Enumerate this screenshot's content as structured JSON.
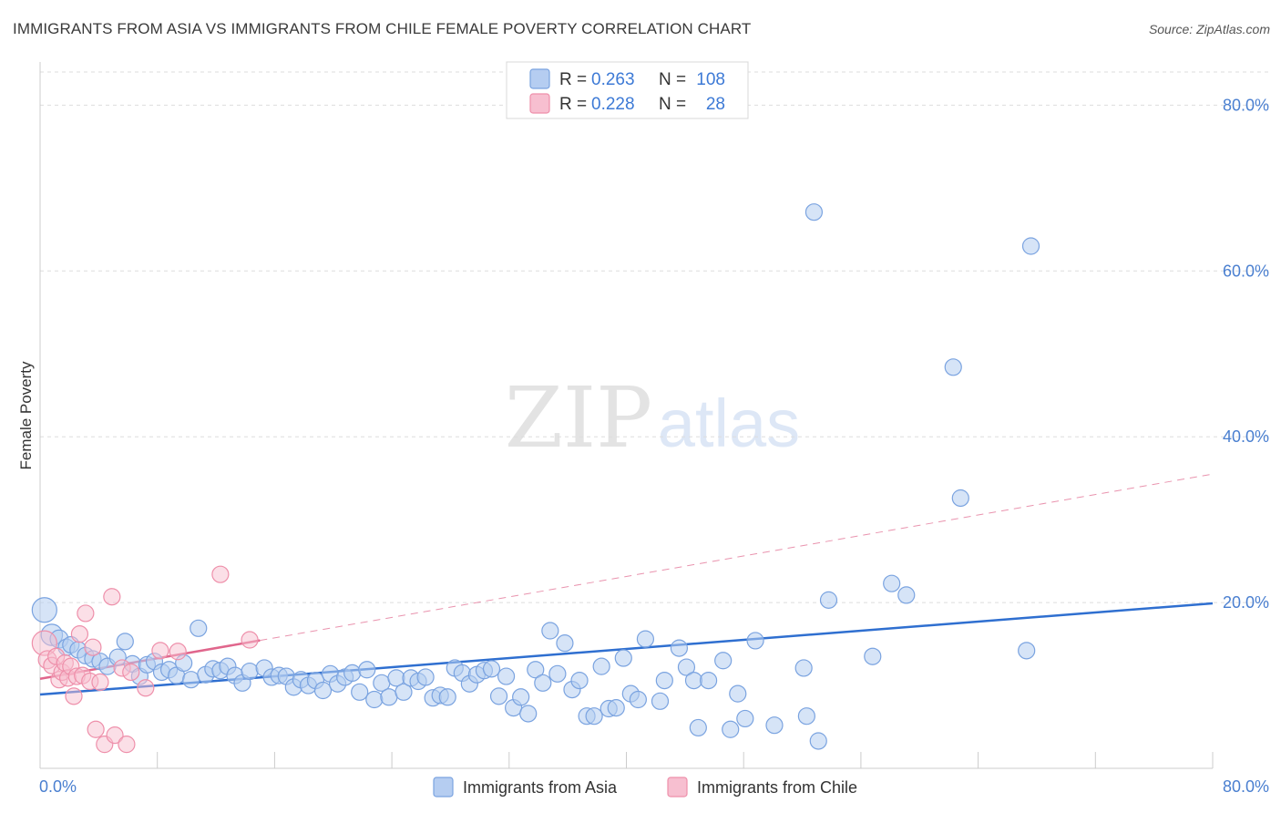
{
  "title": "IMMIGRANTS FROM ASIA VS IMMIGRANTS FROM CHILE FEMALE POVERTY CORRELATION CHART",
  "source": "Source: ZipAtlas.com",
  "watermark": {
    "zip": "ZIP",
    "atlas": "atlas"
  },
  "colors": {
    "asia_fill": "#b5cdf1",
    "asia_stroke": "#7aa3e0",
    "asia_line": "#2f6fd0",
    "chile_fill": "#f7bfd0",
    "chile_stroke": "#ee8faa",
    "chile_line": "#e0668c",
    "grid": "#dddddd",
    "axis_label": "#4a7fd0"
  },
  "legend": {
    "rows": [
      {
        "r_label": "R = ",
        "r_value": "0.263",
        "n_label": "N = ",
        "n_value": "108"
      },
      {
        "r_label": "R = ",
        "r_value": "0.228",
        "n_label": "N = ",
        "n_value": "28"
      }
    ]
  },
  "chart_data": {
    "type": "scatter",
    "title": "IMMIGRANTS FROM ASIA VS IMMIGRANTS FROM CHILE FEMALE POVERTY CORRELATION CHART",
    "xlabel": "",
    "ylabel": "Female Poverty",
    "xlim": [
      0,
      80
    ],
    "ylim": [
      0,
      84
    ],
    "x_tick_labels": {
      "left": "0.0%",
      "right": "80.0%"
    },
    "y_ticks": [
      20,
      40,
      60,
      80
    ],
    "y_tick_labels": [
      "20.0%",
      "40.0%",
      "60.0%",
      "80.0%"
    ],
    "grid": true,
    "series": [
      {
        "name": "Immigrants from Asia",
        "R": 0.263,
        "N": 108,
        "trend": {
          "x0": 0,
          "y0": 8.9,
          "x1": 80,
          "y1": 19.9,
          "style": "solid"
        },
        "points": [
          [
            0.3,
            19.1,
            1.5
          ],
          [
            0.8,
            16.1,
            1.3
          ],
          [
            1.3,
            15.6,
            1.1
          ],
          [
            1.8,
            14.6,
            1.0
          ],
          [
            2.1,
            14.9,
            1.0
          ],
          [
            2.6,
            14.3,
            1.0
          ],
          [
            3.1,
            13.6,
            1.0
          ],
          [
            3.6,
            13.2,
            1.0
          ],
          [
            4.1,
            12.9,
            1.0
          ],
          [
            4.6,
            12.3,
            1.0
          ],
          [
            5.3,
            13.4,
            1.0
          ],
          [
            5.8,
            15.3,
            1.0
          ],
          [
            6.3,
            12.6,
            1.0
          ],
          [
            6.8,
            11.1,
            1.0
          ],
          [
            7.3,
            12.5,
            1.0
          ],
          [
            7.8,
            12.9,
            1.0
          ],
          [
            8.3,
            11.6,
            1.0
          ],
          [
            8.8,
            11.9,
            1.0
          ],
          [
            9.3,
            11.2,
            1.0
          ],
          [
            9.8,
            12.7,
            1.0
          ],
          [
            10.3,
            10.7,
            1.0
          ],
          [
            10.8,
            16.9,
            1.0
          ],
          [
            11.3,
            11.3,
            1.0
          ],
          [
            11.8,
            12.0,
            1.0
          ],
          [
            12.3,
            11.8,
            1.0
          ],
          [
            12.8,
            12.3,
            1.0
          ],
          [
            13.3,
            11.2,
            1.0
          ],
          [
            13.8,
            10.3,
            1.0
          ],
          [
            14.3,
            11.7,
            1.0
          ],
          [
            15.3,
            12.1,
            1.0
          ],
          [
            15.8,
            11.0,
            1.0
          ],
          [
            16.3,
            11.2,
            1.0
          ],
          [
            16.8,
            11.1,
            1.0
          ],
          [
            17.3,
            9.8,
            1.0
          ],
          [
            17.8,
            10.7,
            1.0
          ],
          [
            18.3,
            10.0,
            1.0
          ],
          [
            18.8,
            10.6,
            1.0
          ],
          [
            19.3,
            9.4,
            1.0
          ],
          [
            19.8,
            11.4,
            1.0
          ],
          [
            20.3,
            10.2,
            1.0
          ],
          [
            20.8,
            11.0,
            1.0
          ],
          [
            21.3,
            11.5,
            1.0
          ],
          [
            21.8,
            9.2,
            1.0
          ],
          [
            22.3,
            11.9,
            1.0
          ],
          [
            22.8,
            8.3,
            1.0
          ],
          [
            23.3,
            10.3,
            1.0
          ],
          [
            23.8,
            8.6,
            1.0
          ],
          [
            24.3,
            10.9,
            1.0
          ],
          [
            24.8,
            9.2,
            1.0
          ],
          [
            25.3,
            10.9,
            1.0
          ],
          [
            25.8,
            10.5,
            1.0
          ],
          [
            26.3,
            11.0,
            1.0
          ],
          [
            26.8,
            8.5,
            1.0
          ],
          [
            27.3,
            8.8,
            1.0
          ],
          [
            27.8,
            8.6,
            1.0
          ],
          [
            28.3,
            12.1,
            1.0
          ],
          [
            28.8,
            11.5,
            1.0
          ],
          [
            29.3,
            10.2,
            1.0
          ],
          [
            29.8,
            11.3,
            1.0
          ],
          [
            30.3,
            11.8,
            1.0
          ],
          [
            30.8,
            12.0,
            1.0
          ],
          [
            31.3,
            8.7,
            1.0
          ],
          [
            31.8,
            11.1,
            1.0
          ],
          [
            32.3,
            7.3,
            1.0
          ],
          [
            32.8,
            8.6,
            1.0
          ],
          [
            33.3,
            6.6,
            1.0
          ],
          [
            33.8,
            11.9,
            1.0
          ],
          [
            34.3,
            10.3,
            1.0
          ],
          [
            34.8,
            16.6,
            1.0
          ],
          [
            35.3,
            11.4,
            1.0
          ],
          [
            35.8,
            15.1,
            1.0
          ],
          [
            36.3,
            9.5,
            1.0
          ],
          [
            36.8,
            10.6,
            1.0
          ],
          [
            37.3,
            6.3,
            1.0
          ],
          [
            37.8,
            6.3,
            1.0
          ],
          [
            38.3,
            12.3,
            1.0
          ],
          [
            38.8,
            7.2,
            1.0
          ],
          [
            39.3,
            7.3,
            1.0
          ],
          [
            39.8,
            13.3,
            1.0
          ],
          [
            40.3,
            9.0,
            1.0
          ],
          [
            40.8,
            8.3,
            1.0
          ],
          [
            41.3,
            15.6,
            1.0
          ],
          [
            42.3,
            8.1,
            1.0
          ],
          [
            42.6,
            10.6,
            1.0
          ],
          [
            43.6,
            14.5,
            1.0
          ],
          [
            44.1,
            12.2,
            1.0
          ],
          [
            44.6,
            10.6,
            1.0
          ],
          [
            44.9,
            4.9,
            1.0
          ],
          [
            45.6,
            10.6,
            1.0
          ],
          [
            46.6,
            13.0,
            1.0
          ],
          [
            47.1,
            4.7,
            1.0
          ],
          [
            47.6,
            9.0,
            1.0
          ],
          [
            48.1,
            6.0,
            1.0
          ],
          [
            48.8,
            15.4,
            1.0
          ],
          [
            50.1,
            5.2,
            1.0
          ],
          [
            52.1,
            12.1,
            1.0
          ],
          [
            52.3,
            6.3,
            1.0
          ],
          [
            52.8,
            67.1,
            1.0
          ],
          [
            53.1,
            3.3,
            1.0
          ],
          [
            53.8,
            20.3,
            1.0
          ],
          [
            56.8,
            13.5,
            1.0
          ],
          [
            58.1,
            22.3,
            1.0
          ],
          [
            59.1,
            20.9,
            1.0
          ],
          [
            62.3,
            48.4,
            1.0
          ],
          [
            62.8,
            32.6,
            1.0
          ],
          [
            67.3,
            14.2,
            1.0
          ],
          [
            67.6,
            63.0,
            1.0
          ]
        ]
      },
      {
        "name": "Immigrants from Chile",
        "R": 0.228,
        "N": 28,
        "trend": {
          "x0": 0,
          "y0": 10.8,
          "x1": 80,
          "y1": 35.5,
          "solid_until": 15,
          "style": "solid-then-dashed"
        },
        "points": [
          [
            0.3,
            15.1,
            1.5
          ],
          [
            0.5,
            13.1,
            1.1
          ],
          [
            0.8,
            12.4,
            1.0
          ],
          [
            1.1,
            13.5,
            1.0
          ],
          [
            1.3,
            10.7,
            1.0
          ],
          [
            1.5,
            11.6,
            1.0
          ],
          [
            1.7,
            12.7,
            1.0
          ],
          [
            1.9,
            10.9,
            1.0
          ],
          [
            2.1,
            12.3,
            1.0
          ],
          [
            2.3,
            8.7,
            1.0
          ],
          [
            2.5,
            11.1,
            1.0
          ],
          [
            2.7,
            16.2,
            1.0
          ],
          [
            2.9,
            11.2,
            1.0
          ],
          [
            3.1,
            18.7,
            1.0
          ],
          [
            3.4,
            10.5,
            1.0
          ],
          [
            3.6,
            14.6,
            1.0
          ],
          [
            3.8,
            4.7,
            1.0
          ],
          [
            4.1,
            10.4,
            1.0
          ],
          [
            4.4,
            2.9,
            1.0
          ],
          [
            4.9,
            20.7,
            1.0
          ],
          [
            5.1,
            4.0,
            1.0
          ],
          [
            5.6,
            12.1,
            1.0
          ],
          [
            5.9,
            2.9,
            1.0
          ],
          [
            6.2,
            11.6,
            1.0
          ],
          [
            7.2,
            9.7,
            1.0
          ],
          [
            8.2,
            14.2,
            1.0
          ],
          [
            9.4,
            14.1,
            1.0
          ],
          [
            12.3,
            23.4,
            1.0
          ],
          [
            14.3,
            15.5,
            1.0
          ]
        ]
      }
    ]
  },
  "bottom_legend": [
    {
      "label": "Immigrants from Asia"
    },
    {
      "label": "Immigrants from Chile"
    }
  ]
}
